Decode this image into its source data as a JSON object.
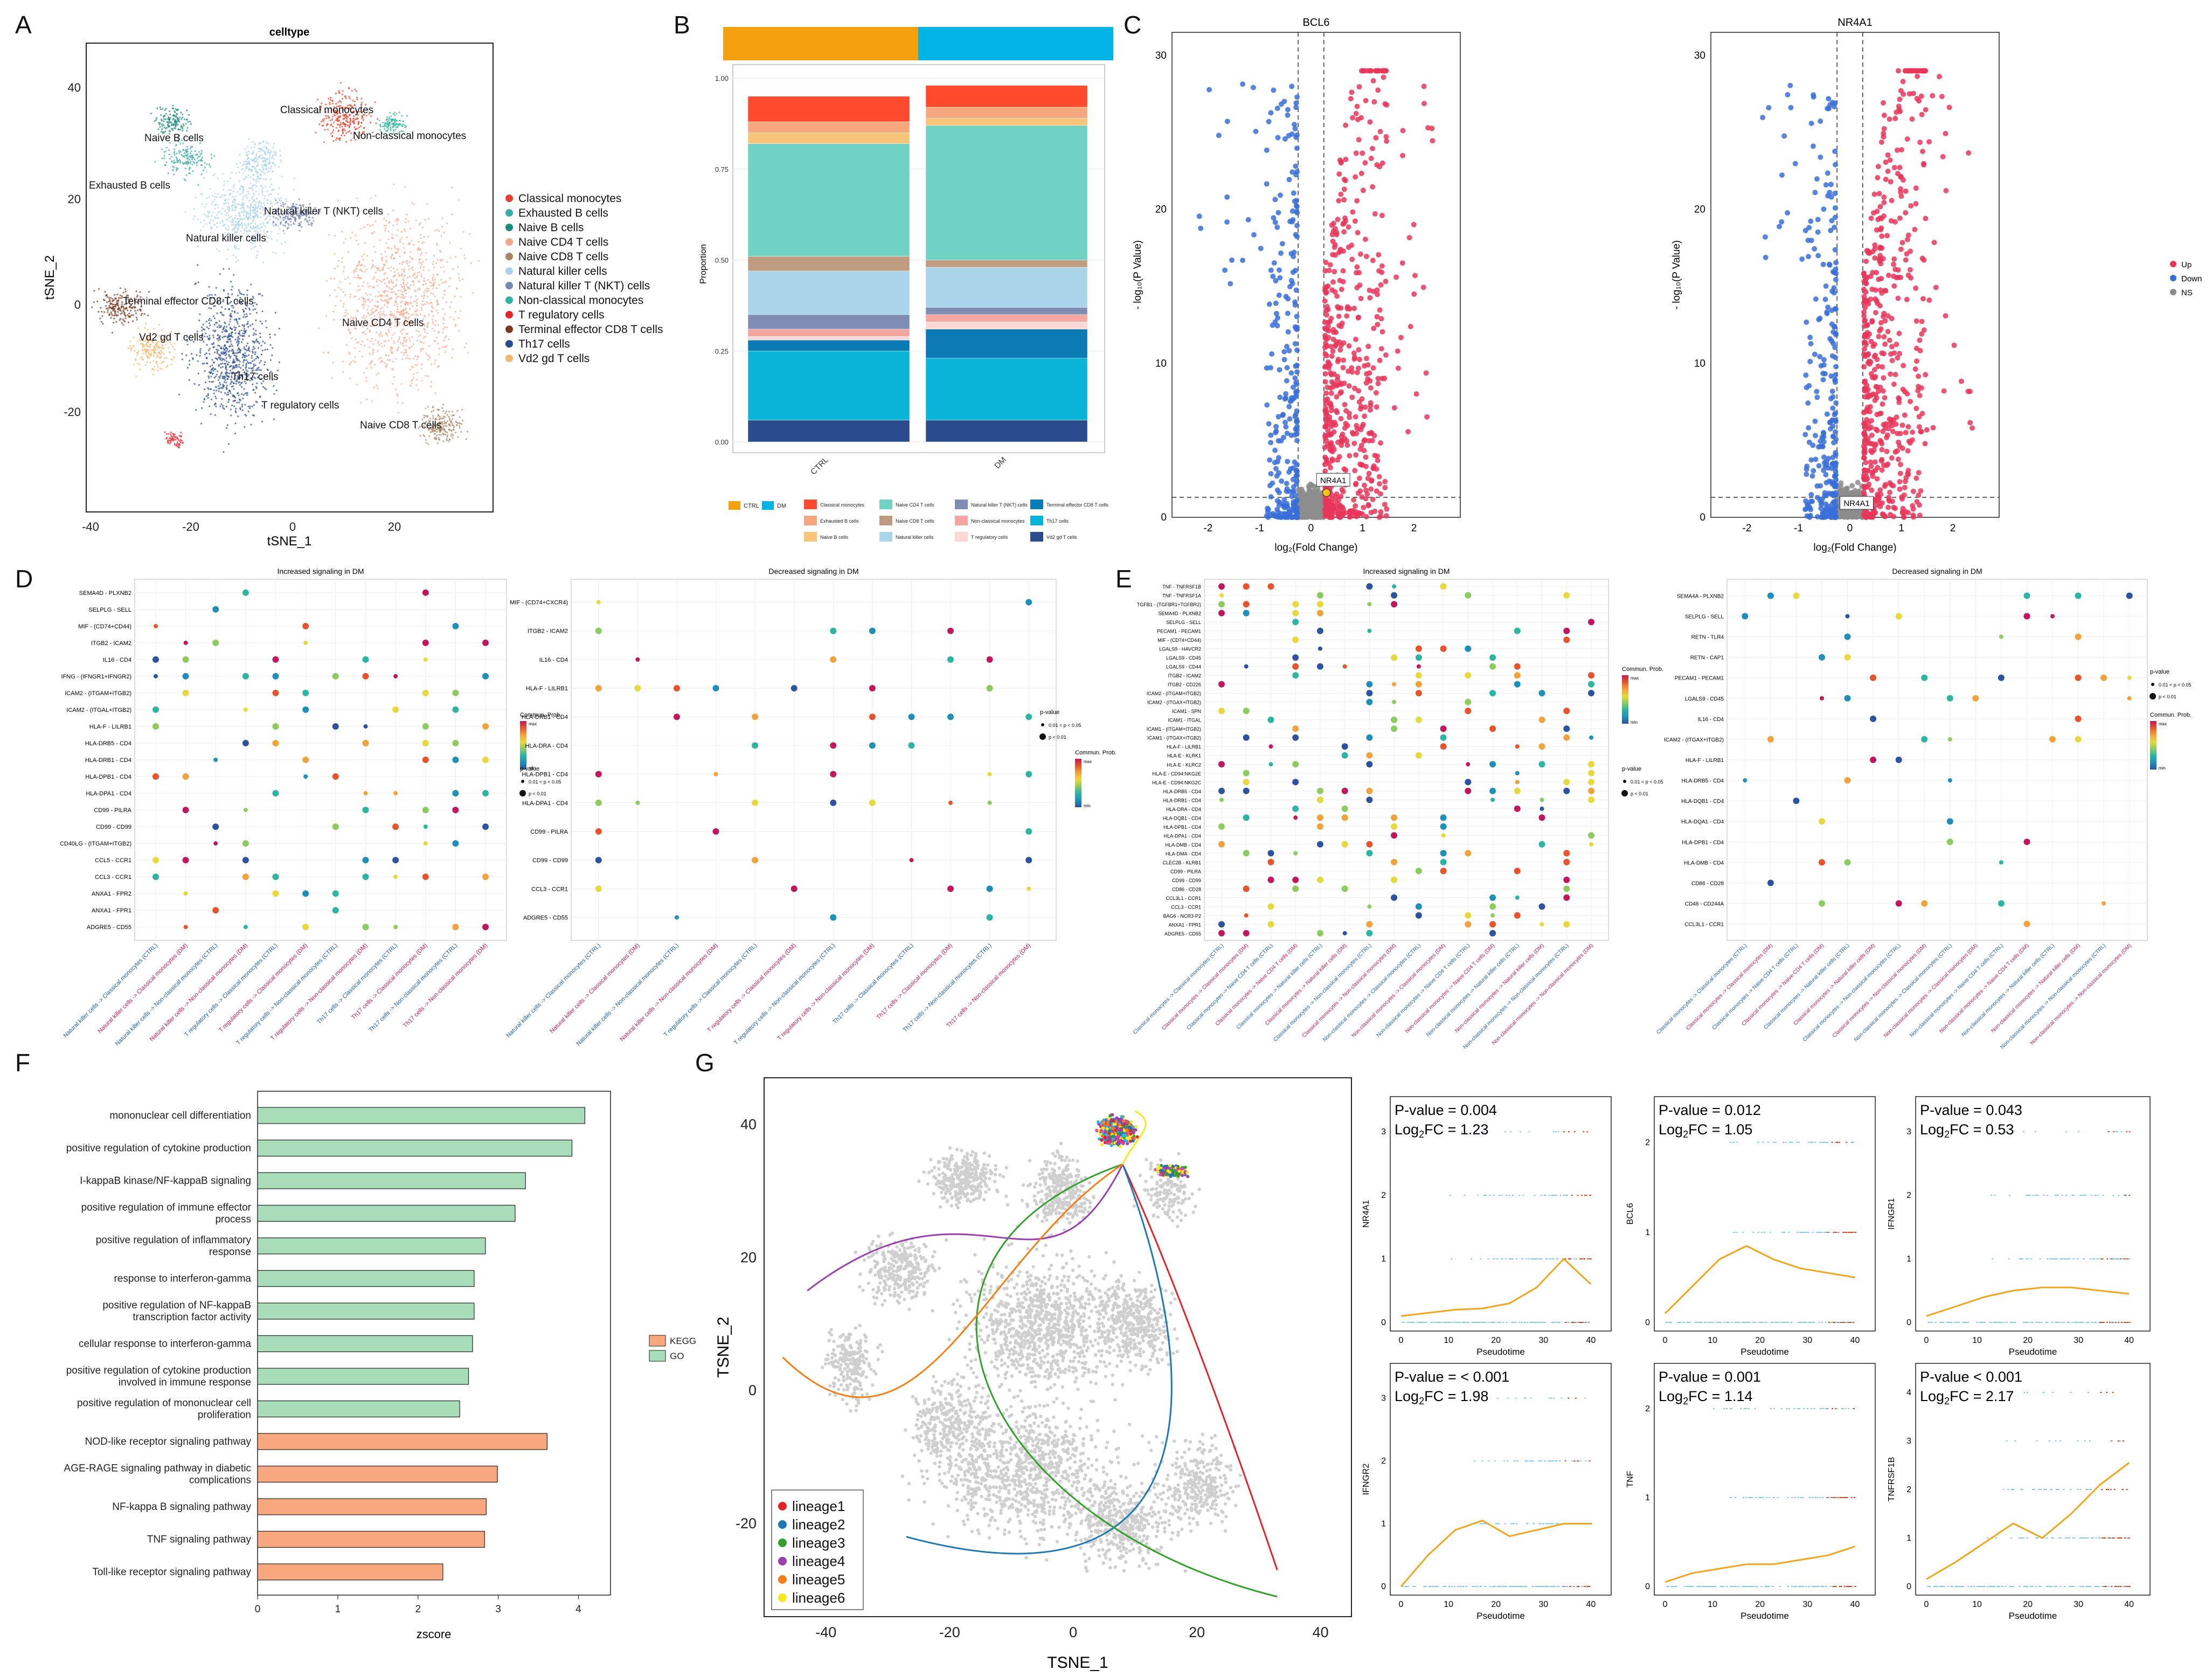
{
  "panels": [
    "A",
    "B",
    "C",
    "D",
    "E",
    "F",
    "G"
  ],
  "A": {
    "title": "celltype",
    "xlabel": "tSNE_1",
    "ylabel": "tSNE_2",
    "xticks": [
      "-40",
      "-20",
      "0",
      "20"
    ],
    "yticks": [
      "40",
      "20",
      "0",
      "-20"
    ],
    "legend": [
      {
        "name": "Classical monocytes",
        "color": "#E8412E"
      },
      {
        "name": "Exhausted B cells",
        "color": "#3CA9A6"
      },
      {
        "name": "Naive B cells",
        "color": "#1A8A7A"
      },
      {
        "name": "Naive CD4 T cells",
        "color": "#F5A58C"
      },
      {
        "name": "Naive CD8 T cells",
        "color": "#A98466"
      },
      {
        "name": "Natural killer cells",
        "color": "#A8D1EA"
      },
      {
        "name": "Natural killer T (NKT) cells",
        "color": "#7788B2"
      },
      {
        "name": "Non-classical monocytes",
        "color": "#34B4A0"
      },
      {
        "name": "T regulatory cells",
        "color": "#E8242C"
      },
      {
        "name": "Terminal effector CD8 T cells",
        "color": "#7A3A22"
      },
      {
        "name": "Th17 cells",
        "color": "#2B4C8C"
      },
      {
        "name": "Vd2 gd T cells",
        "color": "#F2B96E"
      }
    ],
    "cluster_labels": [
      "Classical monocytes",
      "Naive B cells",
      "Non-classical monocytes",
      "Exhausted B cells",
      "Natural killer T (NKT) cells",
      "Natural killer cells",
      "Terminal effector CD8 T cells",
      "Naive CD4 T cells",
      "Vd2 gd T cells",
      "Th17 cells",
      "T regulatory cells",
      "Naive CD8 T cells"
    ]
  },
  "B": {
    "ylabel": "Proportion",
    "yticks": [
      "1.00",
      "0.75",
      "0.50",
      "0.25",
      "0.00"
    ],
    "groups": [
      "CTRL",
      "DM"
    ],
    "group_colors": [
      "#F5A10F",
      "#00B4E6"
    ],
    "legend_groups": [
      "CTRL",
      "DM"
    ],
    "legend_cells": [
      {
        "name": "Classical monocytes",
        "color": "#FF4A2E"
      },
      {
        "name": "Exhausted B cells",
        "color": "#F7A77D"
      },
      {
        "name": "Naive B cells",
        "color": "#F8C47A"
      },
      {
        "name": "Naive CD4 T cells",
        "color": "#70D2C3"
      },
      {
        "name": "Naive CD8 T cells",
        "color": "#BF9B80"
      },
      {
        "name": "Natural killer cells",
        "color": "#A9D4EA"
      },
      {
        "name": "Natural killer T (NKT) cells",
        "color": "#7F8CB4"
      },
      {
        "name": "Non-classical monocytes",
        "color": "#F4A5A0"
      },
      {
        "name": "T regulatory cells",
        "color": "#FAD8D6"
      },
      {
        "name": "Terminal effector CD8 T cells",
        "color": "#0A7AB4"
      },
      {
        "name": "Th17 cells",
        "color": "#0AB4D8"
      },
      {
        "name": "Vd2 gd T cells",
        "color": "#2B4C8C"
      }
    ]
  },
  "C": {
    "plots": [
      {
        "title": "BCL6",
        "label": "NR4A1"
      },
      {
        "title": "NR4A1",
        "label": "NR4A1"
      }
    ],
    "xlabel": "log₂(Fold Change)",
    "ylabel": "- log₁₀(P Value)",
    "xticks": [
      "-2",
      "-1",
      "0",
      "1",
      "2"
    ],
    "yticks": [
      "0",
      "10",
      "20",
      "30"
    ],
    "legend": [
      {
        "name": "Up",
        "color": "#E8365A"
      },
      {
        "name": "Down",
        "color": "#3A6ED8"
      },
      {
        "name": "NS",
        "color": "#8C8C8C"
      }
    ]
  },
  "D": {
    "left_title": "Increased signaling in DM",
    "right_title": "Decreased signaling in DM",
    "left_rows": [
      "SEMA4D - PLXNB2",
      "SELPLG - SELL",
      "MIF - (CD74+CD44)",
      "ITGB2 - ICAM2",
      "IL16 - CD4",
      "IFNG - (IFNGR1+IFNGR2)",
      "ICAM2 - (ITGAM+ITGB2)",
      "ICAM2 - (ITGAL+ITGB2)",
      "HLA-F - LILRB1",
      "HLA-DRB5 - CD4",
      "HLA-DRB1 - CD4",
      "HLA-DPB1 - CD4",
      "HLA-DPA1 - CD4",
      "CD99 - PILRA",
      "CD99 - CD99",
      "CD40LG - (ITGAM+ITGB2)",
      "CCL5 - CCR1",
      "CCL3 - CCR1",
      "ANXA1 - FPR2",
      "ANXA1 - FPR1",
      "ADGRE5 - CD55"
    ],
    "right_rows": [
      "MIF - (CD74+CXCR4)",
      "ITGB2 - ICAM2",
      "IL16 - CD4",
      "HLA-F - LILRB1",
      "HLA-DRB1 - CD4",
      "HLA-DRA - CD4",
      "HLA-DPB1 - CD4",
      "HLA-DPA1 - CD4",
      "CD99 - PILRA",
      "CD99 - CD99",
      "CCL3 - CCR1",
      "ADGRE5 - CD55"
    ],
    "cols": [
      "Natural killer cells -> Classical monocytes (CTRL)",
      "Natural killer cells -> Classical monocytes (DM)",
      "Natural killer cells -> Non-classical monocytes (CTRL)",
      "Natural killer cells -> Non-classical monocytes (DM)",
      "T regulatory cells -> Classical monocytes (CTRL)",
      "T regulatory cells -> Classical monocytes (DM)",
      "T regulatory cells -> Non-classical monocytes (CTRL)",
      "T regulatory cells -> Non-classical monocytes (DM)",
      "Th17 cells -> Classical monocytes (CTRL)",
      "Th17 cells -> Classical monocytes (DM)",
      "Th17 cells -> Non-classical monocytes (CTRL)",
      "Th17 cells -> Non-classical monocytes (DM)"
    ],
    "legend_comm": "Commun. Prob.",
    "legend_max": "max",
    "legend_min": "min",
    "legend_pvalue": "p-value",
    "legend_p1": "0.01 < p < 0.05",
    "legend_p2": "p < 0.01"
  },
  "E": {
    "left_title": "Increased signaling in DM",
    "right_title": "Decreased signaling in DM",
    "left_rows": [
      "TNF - TNFRSF1B",
      "TNF - TNFRSF1A",
      "TGFB1 - (TGFBR1+TGFBR2)",
      "SEMA4D - PLXNB2",
      "SELPLG - SELL",
      "PECAM1 - PECAM1",
      "MIF - (CD74+CD44)",
      "LGALS9 - HAVCR2",
      "LGALS9 - CD45",
      "LGALS9 - CD44",
      "ITGB2 - ICAM2",
      "ITGB2 - CD226",
      "ICAM2 - (ITGAM+ITGB2)",
      "ICAM2 - (ITGAX+ITGB2)",
      "ICAM1 - SPN",
      "ICAM1 - ITGAL",
      "ICAM1 - (ITGAM+ITGB2)",
      "ICAM1 - (ITGAX+ITGB2)",
      "HLA-F - LILRB1",
      "HLA-E - KLRK1",
      "HLA-E - KLRC2",
      "HLA-E - CD94:NKG2E",
      "HLA-E - CD94:NKG2C",
      "HLA-DRB5 - CD4",
      "HLA-DRB1 - CD4",
      "HLA-DRA - CD4",
      "HLA-DQB1 - CD4",
      "HLA-DPB1 - CD4",
      "HLA-DPA1 - CD4",
      "HLA-DMB - CD4",
      "HLA-DMA - CD4",
      "CLEC2B - KLRB1",
      "CD99 - PILRA",
      "CD99 - CD99",
      "CD86 - CD28",
      "CCL3L1 - CCR1",
      "CCL3 - CCR1",
      "BAG6 - NCR3-P2",
      "ANXA1 - FPR1",
      "ADGRE5 - CD55"
    ],
    "right_rows": [
      "SEMA4A - PLXNB2",
      "SELPLG - SELL",
      "RETN - TLR4",
      "RETN - CAP1",
      "PECAM1 - PECAM1",
      "LGALS9 - CD45",
      "IL16 - CD4",
      "ICAM2 - (ITGAX+ITGB2)",
      "HLA-F - LILRB1",
      "HLA-DRB5 - CD4",
      "HLA-DQB1 - CD4",
      "HLA-DQA1 - CD4",
      "HLA-DPB1 - CD4",
      "HLA-DMB - CD4",
      "CD86 - CD28",
      "CD48 - CD244A",
      "CCL3L1 - CCR1"
    ],
    "cols": [
      "Classical monocytes -> Classical monocytes (CTRL)",
      "Classical monocytes -> Classical monocytes (DM)",
      "Classical monocytes -> Naive CD4 T cells (CTRL)",
      "Classical monocytes -> Naive CD4 T cells (DM)",
      "Classical monocytes -> Natural killer cells (CTRL)",
      "Classical monocytes -> Natural killer cells (DM)",
      "Classical monocytes -> Non-classical monocytes (CTRL)",
      "Classical monocytes -> Non-classical monocytes (DM)",
      "Non-classical monocytes -> Classical monocytes (CTRL)",
      "Non-classical monocytes -> Classical monocytes (DM)",
      "Non-classical monocytes -> Naive CD4 T cells (CTRL)",
      "Non-classical monocytes -> Naive CD4 T cells (DM)",
      "Non-classical monocytes -> Natural killer cells (CTRL)",
      "Non-classical monocytes -> Natural killer cells (DM)",
      "Non-classical monocytes -> Non-classical monocytes (CTRL)",
      "Non-classical monocytes -> Non-classical monocytes (DM)"
    ],
    "legend_comm": "Commun. Prob.",
    "legend_max": "max",
    "legend_min": "min",
    "legend_pvalue": "p-value",
    "legend_p1": "0.01 < p < 0.05",
    "legend_p2": "p < 0.01"
  },
  "F": {
    "xlabel": "zscore",
    "xticks": [
      "0",
      "1",
      "2",
      "3",
      "4"
    ],
    "legend": [
      {
        "name": "KEGG",
        "color": "#F9A77E"
      },
      {
        "name": "GO",
        "color": "#A7DDB8"
      }
    ]
  },
  "G": {
    "xlabel": "TSNE_1",
    "ylabel": "TSNE_2",
    "xticks": [
      "-40",
      "-20",
      "0",
      "20",
      "40"
    ],
    "yticks": [
      "40",
      "20",
      "0",
      "-20"
    ],
    "lineages": [
      {
        "name": "lineage1",
        "color": "#E8202A"
      },
      {
        "name": "lineage2",
        "color": "#1F78B4"
      },
      {
        "name": "lineage3",
        "color": "#33A02C"
      },
      {
        "name": "lineage4",
        "color": "#9B3FB0"
      },
      {
        "name": "lineage5",
        "color": "#F57F17"
      },
      {
        "name": "lineage6",
        "color": "#F5E81E"
      }
    ],
    "pseudo_xlabel": "Pseudotime",
    "pseudo_xticks": [
      "0",
      "10",
      "20",
      "30",
      "40"
    ],
    "gene_plots": [
      {
        "gene": "NR4A1",
        "pvalue": "P-value = 0.004",
        "log2fc_prefix": "Log",
        "log2fc_suffix": "FC = 1.23",
        "yticks": [
          "0",
          "1",
          "2",
          "3"
        ]
      },
      {
        "gene": "BCL6",
        "pvalue": "P-value = 0.012",
        "log2fc_prefix": "Log",
        "log2fc_suffix": "FC = 1.05",
        "yticks": [
          "0",
          "1",
          "2"
        ]
      },
      {
        "gene": "IFNGR1",
        "pvalue": "P-value = 0.043",
        "log2fc_prefix": "Log",
        "log2fc_suffix": "FC = 0.53",
        "yticks": [
          "0",
          "1",
          "2",
          "3"
        ]
      },
      {
        "gene": "IFNGR2",
        "pvalue": "P-value = < 0.001",
        "log2fc_prefix": "Log",
        "log2fc_suffix": "FC = 1.98",
        "yticks": [
          "0",
          "1",
          "2",
          "3"
        ]
      },
      {
        "gene": "TNF",
        "pvalue": "P-value = 0.001",
        "log2fc_prefix": "Log",
        "log2fc_suffix": "FC = 1.14",
        "yticks": [
          "0",
          "1",
          "2"
        ]
      },
      {
        "gene": "TNFRSF1B",
        "pvalue": "P-value < 0.001",
        "log2fc_prefix": "Log",
        "log2fc_suffix": "FC = 2.17",
        "yticks": [
          "0",
          "1",
          "2",
          "3",
          "4"
        ]
      }
    ]
  },
  "chart_data": [
    {
      "type": "bar",
      "panel": "B",
      "stacked": true,
      "categories": [
        "CTRL",
        "DM"
      ],
      "ylabel": "Proportion",
      "ylim": [
        0,
        1
      ],
      "series": [
        {
          "name": "Vd2 gd T cells",
          "values": [
            0.06,
            0.06
          ]
        },
        {
          "name": "Th17 cells",
          "values": [
            0.19,
            0.17
          ]
        },
        {
          "name": "Terminal effector CD8 T cells",
          "values": [
            0.03,
            0.08
          ]
        },
        {
          "name": "T regulatory cells",
          "values": [
            0.01,
            0.02
          ]
        },
        {
          "name": "Non-classical monocytes",
          "values": [
            0.02,
            0.02
          ]
        },
        {
          "name": "Natural killer T (NKT) cells",
          "values": [
            0.04,
            0.02
          ]
        },
        {
          "name": "Natural killer cells",
          "values": [
            0.12,
            0.11
          ]
        },
        {
          "name": "Naive CD8 T cells",
          "values": [
            0.04,
            0.02
          ]
        },
        {
          "name": "Naive CD4 T cells",
          "values": [
            0.31,
            0.37
          ]
        },
        {
          "name": "Naive B cells",
          "values": [
            0.03,
            0.02
          ]
        },
        {
          "name": "Exhausted B cells",
          "values": [
            0.03,
            0.03
          ]
        },
        {
          "name": "Classical monocytes",
          "values": [
            0.07,
            0.06
          ]
        }
      ]
    },
    {
      "type": "bar",
      "panel": "F",
      "orientation": "horizontal",
      "xlabel": "zscore",
      "xlim": [
        0,
        4.4
      ],
      "categories": [
        "mononuclear cell differentiation",
        "positive regulation of cytokine production",
        "I-kappaB kinase/NF-kappaB signaling",
        "positive regulation of immune effector process",
        "positive regulation of inflammatory response",
        "response to interferon-gamma",
        "positive regulation of NF-kappaB transcription factor activity",
        "cellular response to interferon-gamma",
        "positive regulation of cytokine production involved in immune response",
        "positive regulation of mononuclear cell proliferation",
        "NOD-like receptor signaling pathway",
        "AGE-RAGE signaling pathway in diabetic complications",
        "NF-kappa B signaling pathway",
        "TNF signaling pathway",
        "Toll-like receptor signaling pathway"
      ],
      "values": [
        4.08,
        3.92,
        3.34,
        3.21,
        2.84,
        2.7,
        2.7,
        2.68,
        2.63,
        2.52,
        3.61,
        2.99,
        2.85,
        2.83,
        2.31
      ],
      "groups": [
        "GO",
        "GO",
        "GO",
        "GO",
        "GO",
        "GO",
        "GO",
        "GO",
        "GO",
        "GO",
        "KEGG",
        "KEGG",
        "KEGG",
        "KEGG",
        "KEGG"
      ]
    }
  ]
}
